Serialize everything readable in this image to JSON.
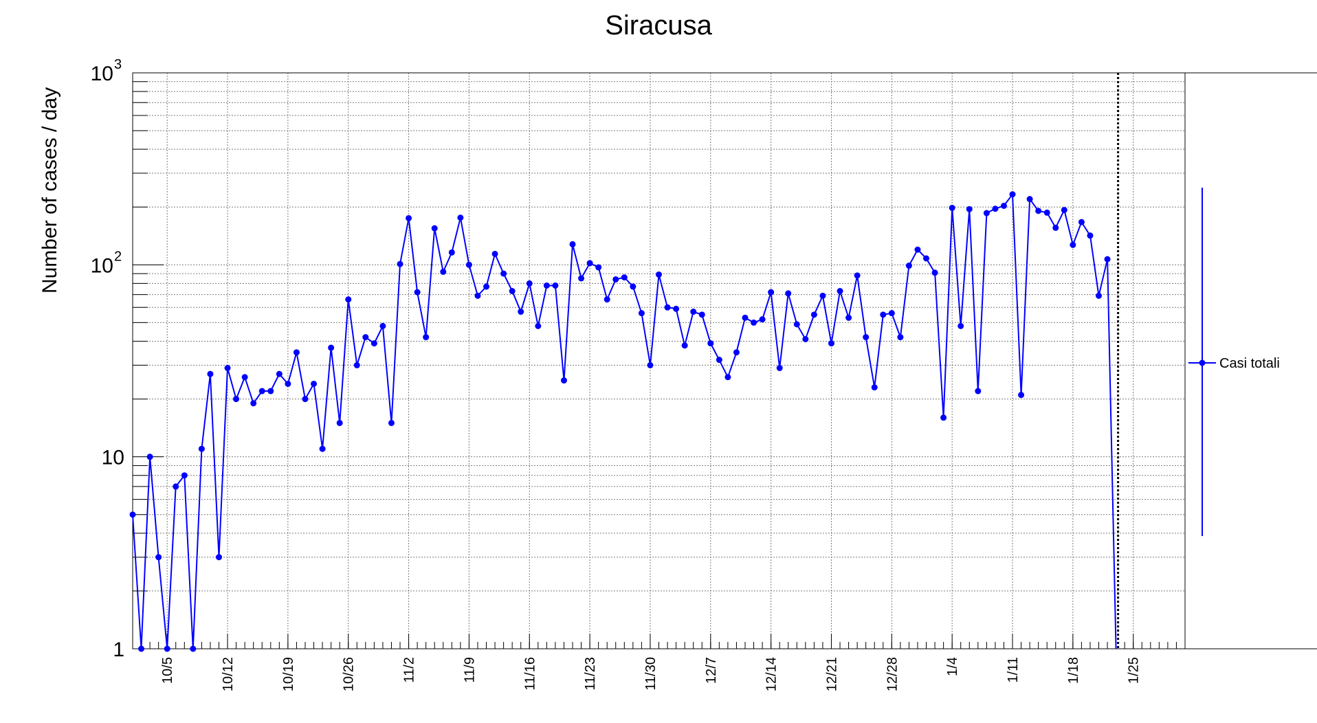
{
  "chart_data": {
    "type": "line",
    "title": "Siracusa",
    "xlabel": "",
    "ylabel": "Number of cases / day",
    "yscale": "log",
    "ylim": [
      1,
      1000
    ],
    "grid": true,
    "legend_position": "right",
    "x_tick_labels": [
      "10/5",
      "10/12",
      "10/19",
      "10/26",
      "11/2",
      "11/9",
      "11/16",
      "11/23",
      "11/30",
      "12/7",
      "12/14",
      "12/21",
      "12/28",
      "1/4",
      "1/11",
      "1/18",
      "1/25"
    ],
    "x_range": [
      "2020-10-01",
      "2021-01-31"
    ],
    "y_tick_labels": [
      {
        "mant": "1",
        "exp": ""
      },
      {
        "mant": "10",
        "exp": ""
      },
      {
        "mant": "10",
        "exp": "2"
      },
      {
        "mant": "10",
        "exp": "3"
      }
    ],
    "x_dates": [
      "2020-10-01",
      "2020-10-02",
      "2020-10-03",
      "2020-10-04",
      "2020-10-05",
      "2020-10-06",
      "2020-10-07",
      "2020-10-08",
      "2020-10-09",
      "2020-10-10",
      "2020-10-11",
      "2020-10-12",
      "2020-10-13",
      "2020-10-14",
      "2020-10-15",
      "2020-10-16",
      "2020-10-17",
      "2020-10-18",
      "2020-10-19",
      "2020-10-20",
      "2020-10-21",
      "2020-10-22",
      "2020-10-23",
      "2020-10-24",
      "2020-10-25",
      "2020-10-26",
      "2020-10-27",
      "2020-10-28",
      "2020-10-29",
      "2020-10-30",
      "2020-10-31",
      "2020-11-01",
      "2020-11-02",
      "2020-11-03",
      "2020-11-04",
      "2020-11-05",
      "2020-11-06",
      "2020-11-07",
      "2020-11-08",
      "2020-11-09",
      "2020-11-10",
      "2020-11-11",
      "2020-11-12",
      "2020-11-13",
      "2020-11-14",
      "2020-11-15",
      "2020-11-16",
      "2020-11-17",
      "2020-11-18",
      "2020-11-19",
      "2020-11-20",
      "2020-11-21",
      "2020-11-22",
      "2020-11-23",
      "2020-11-24",
      "2020-11-25",
      "2020-11-26",
      "2020-11-27",
      "2020-11-28",
      "2020-11-29",
      "2020-11-30",
      "2020-12-01",
      "2020-12-02",
      "2020-12-03",
      "2020-12-04",
      "2020-12-05",
      "2020-12-06",
      "2020-12-07",
      "2020-12-08",
      "2020-12-09",
      "2020-12-10",
      "2020-12-11",
      "2020-12-12",
      "2020-12-13",
      "2020-12-14",
      "2020-12-15",
      "2020-12-16",
      "2020-12-17",
      "2020-12-18",
      "2020-12-19",
      "2020-12-20",
      "2020-12-21",
      "2020-12-22",
      "2020-12-23",
      "2020-12-24",
      "2020-12-25",
      "2020-12-26",
      "2020-12-27",
      "2020-12-28",
      "2020-12-29",
      "2020-12-30",
      "2020-12-31",
      "2021-01-01",
      "2021-01-02",
      "2021-01-03",
      "2021-01-04",
      "2021-01-05",
      "2021-01-06",
      "2021-01-07",
      "2021-01-08",
      "2021-01-09",
      "2021-01-10",
      "2021-01-11",
      "2021-01-12",
      "2021-01-13",
      "2021-01-14",
      "2021-01-15",
      "2021-01-16",
      "2021-01-17",
      "2021-01-18",
      "2021-01-19",
      "2021-01-20",
      "2021-01-21",
      "2021-01-22",
      "2021-01-23"
    ],
    "series": [
      {
        "name": "Casi totali",
        "color": "#0000ff",
        "values": [
          5,
          1,
          10,
          3,
          1,
          7,
          8,
          1,
          11,
          27,
          3,
          29,
          20,
          26,
          19,
          22,
          22,
          27,
          24,
          35,
          20,
          24,
          11,
          37,
          15,
          66,
          30,
          42,
          39,
          48,
          15,
          101,
          175,
          72,
          42,
          155,
          92,
          116,
          176,
          100,
          69,
          77,
          114,
          90,
          73,
          57,
          80,
          48,
          78,
          78,
          25,
          128,
          85,
          102,
          97,
          66,
          84,
          86,
          77,
          56,
          30,
          89,
          60,
          59,
          38,
          57,
          55,
          39,
          32,
          26,
          35,
          53,
          50,
          52,
          72,
          29,
          71,
          49,
          41,
          55,
          69,
          39,
          73,
          53,
          88,
          42,
          23,
          55,
          56,
          42,
          99,
          120,
          108,
          91,
          16,
          198,
          48,
          195,
          22,
          186,
          196,
          203,
          233,
          21,
          220,
          191,
          187,
          156,
          193,
          127,
          167,
          142,
          69,
          107,
          0.01
        ]
      }
    ],
    "vertical_marker_date": "2021-01-23"
  }
}
